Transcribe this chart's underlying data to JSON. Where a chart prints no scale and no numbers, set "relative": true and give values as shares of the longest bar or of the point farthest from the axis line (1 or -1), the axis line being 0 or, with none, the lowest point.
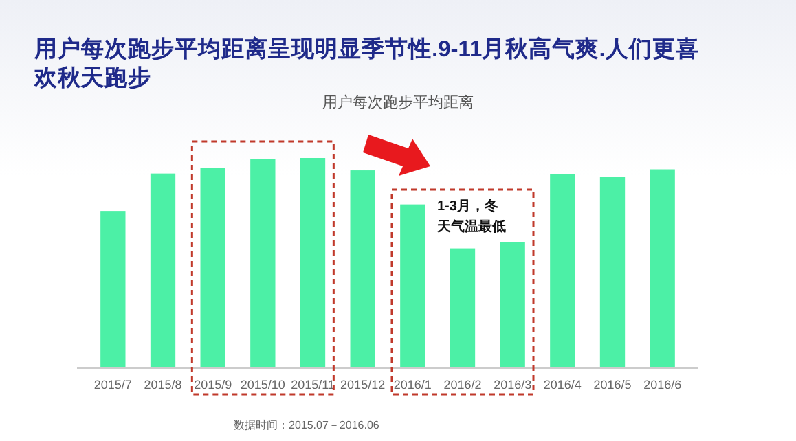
{
  "chart_data": {
    "type": "bar",
    "relative": true,
    "title": "用户每次跑步平均距离呈现明显季节性.9-11月秋高气爽.人们更喜欢秋天跑步",
    "subtitle": "用户每次跑步平均距离",
    "categories": [
      "2015/7",
      "2015/8",
      "2015/9",
      "2015/10",
      "2015/11",
      "2015/12",
      "2016/1",
      "2016/2",
      "2016/3",
      "2016/4",
      "2016/5",
      "2016/6"
    ],
    "values": [
      0.748,
      0.926,
      0.954,
      0.996,
      1,
      0.941,
      0.779,
      0.57,
      0.601,
      0.922,
      0.909,
      0.946
    ],
    "color": "#4cf0a6",
    "annotations": [
      "1-3月，冬天气温最低",
      "数据时间：2015.07－2016.06"
    ]
  }
}
